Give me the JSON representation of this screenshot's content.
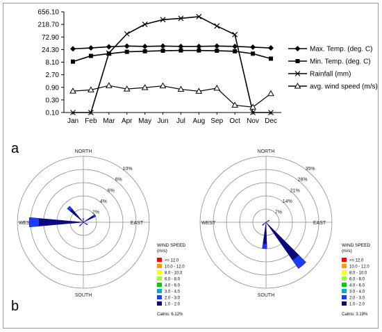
{
  "chart_data": [
    {
      "type": "line",
      "panel_label": "a",
      "categories": [
        "Jan",
        "Feb",
        "Mar",
        "Apr",
        "May",
        "Jun",
        "Jul",
        "Aug",
        "Sep",
        "Oct",
        "Nov",
        "Dec"
      ],
      "y_scale": "log",
      "yticks": [
        0.1,
        0.3,
        0.9,
        2.7,
        8.1,
        24.3,
        72.9,
        218.7,
        656.1
      ],
      "ytick_labels": [
        "0.10",
        "0.30",
        "0.90",
        "2.70",
        "8.10",
        "24.30",
        "72.90",
        "218.70",
        "656.10"
      ],
      "ylim": [
        0.1,
        656.1
      ],
      "series": [
        {
          "name": "Max. Temp. (deg. C)",
          "marker": "diamond",
          "values": [
            26,
            28,
            31,
            33,
            32,
            33,
            32,
            32,
            33,
            32,
            30,
            28
          ]
        },
        {
          "name": "Min. Temp. (deg. C)",
          "marker": "square",
          "values": [
            8.5,
            14,
            17,
            20,
            21,
            22,
            22.5,
            22.5,
            22,
            21,
            17,
            11
          ]
        },
        {
          "name": "Rainfall (mm)",
          "marker": "x",
          "values": [
            0.1,
            0.1,
            18,
            95,
            220,
            330,
            370,
            430,
            190,
            90,
            0.1,
            0.1
          ]
        },
        {
          "name": "avg. wind speed (m/s)",
          "marker": "triangle",
          "values": [
            0.65,
            0.72,
            1.05,
            0.78,
            0.88,
            1.02,
            0.76,
            0.64,
            0.84,
            0.19,
            0.16,
            0.52
          ]
        }
      ],
      "legend_position": "right"
    },
    {
      "type": "wind_rose",
      "panel_label": "b",
      "directions": [
        "NORTH",
        "EAST",
        "SOUTH",
        "WEST"
      ],
      "rings": [
        2,
        4,
        6,
        8,
        10
      ],
      "ring_labels": [
        "2%",
        "4%",
        "6%",
        "8%",
        "10%"
      ],
      "petals": [
        {
          "bearing_deg": 270,
          "width_deg": 10,
          "value": 8.2
        },
        {
          "bearing_deg": 315,
          "width_deg": 10,
          "value": 3.2
        },
        {
          "bearing_deg": 60,
          "width_deg": 10,
          "value": 2.1
        },
        {
          "bearing_deg": 225,
          "width_deg": 10,
          "value": 0.8
        },
        {
          "bearing_deg": 0,
          "width_deg": 10,
          "value": 0.6
        },
        {
          "bearing_deg": 120,
          "width_deg": 10,
          "value": 0.7
        }
      ],
      "legend_title": "WIND SPEED\n(m/s)",
      "calms_label": "Calms: 6.12%"
    },
    {
      "type": "wind_rose",
      "directions": [
        "NORTH",
        "EAST",
        "SOUTH",
        "WEST"
      ],
      "rings": [
        7,
        14,
        21,
        28,
        35
      ],
      "ring_labels": [
        "7%",
        "14%",
        "21%",
        "28%",
        "35%"
      ],
      "petals": [
        {
          "bearing_deg": 140,
          "width_deg": 10,
          "value": 30
        },
        {
          "bearing_deg": 183,
          "width_deg": 10,
          "value": 14
        },
        {
          "bearing_deg": 230,
          "width_deg": 10,
          "value": 2.5
        },
        {
          "bearing_deg": 60,
          "width_deg": 10,
          "value": 2.0
        }
      ],
      "legend_title": "WIND SPEED\n(m/s)",
      "calms_label": "Calms: 3.19%"
    }
  ],
  "wind_speed_legend": [
    {
      "label": ">= 12.0",
      "color": "#ff0000"
    },
    {
      "label": "10.0 - 12.0",
      "color": "#ff9900"
    },
    {
      "label": "8.0 - 10.0",
      "color": "#ffff00"
    },
    {
      "label": "6.0 - 8.0",
      "color": "#99ff33"
    },
    {
      "label": "4.0 - 6.0",
      "color": "#00cc00"
    },
    {
      "label": "3.0 - 4.0",
      "color": "#00aacc"
    },
    {
      "label": "2.0 - 3.0",
      "color": "#1a3cff"
    },
    {
      "label": "1.0 - 2.0",
      "color": "#0a0a80"
    }
  ]
}
